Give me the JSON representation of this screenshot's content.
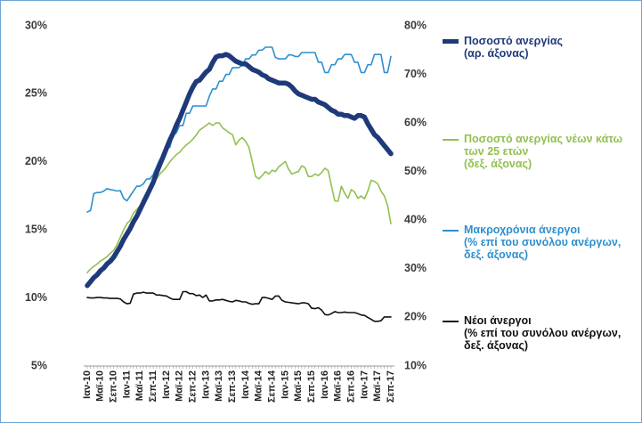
{
  "chart_data": {
    "type": "line",
    "categories": [
      "Ιαν-10",
      null,
      null,
      null,
      "Μαϊ-10",
      null,
      null,
      null,
      "Σεπ-10",
      null,
      null,
      null,
      "Ιαν-11",
      null,
      null,
      null,
      "Μαϊ-11",
      null,
      null,
      null,
      "Σεπ-11",
      null,
      null,
      null,
      "Ιαν-12",
      null,
      null,
      null,
      "Μαϊ-12",
      null,
      null,
      null,
      "Σεπ-12",
      null,
      null,
      null,
      "Ιαν-13",
      null,
      null,
      null,
      "Μαϊ-13",
      null,
      null,
      null,
      "Σεπ-13",
      null,
      null,
      null,
      "Ιαν-14",
      null,
      null,
      null,
      "Μαϊ-14",
      null,
      null,
      null,
      "Σεπ-14",
      null,
      null,
      null,
      "Ιαν-15",
      null,
      null,
      null,
      "Μαϊ-15",
      null,
      null,
      null,
      "Σεπ-15",
      null,
      null,
      null,
      "Ιαν-16",
      null,
      null,
      null,
      "Μαϊ-16",
      null,
      null,
      null,
      "Σεπ-16",
      null,
      null,
      null,
      "Ιαν-17",
      null,
      null,
      null,
      "Μαϊ-17",
      null,
      null,
      null,
      "Σεπ-17"
    ],
    "series": [
      {
        "name": "Ποσοστό ανεργίας\n(αρ. άξονας)",
        "color": "#1f3a7a",
        "values": [
          10.9,
          11.2,
          11.5,
          11.7,
          12.0,
          12.2,
          12.5,
          12.7,
          13.0,
          13.4,
          13.8,
          14.3,
          14.7,
          15.1,
          15.6,
          16.0,
          16.5,
          17.0,
          17.5,
          18.0,
          18.5,
          19.2,
          19.8,
          20.4,
          21.0,
          21.6,
          22.1,
          22.7,
          23.2,
          23.8,
          24.4,
          25.0,
          25.5,
          25.9,
          26.0,
          26.3,
          26.6,
          26.8,
          27.3,
          27.7,
          27.8,
          27.8,
          27.9,
          27.8,
          27.6,
          27.4,
          27.3,
          27.2,
          27.2,
          27.0,
          26.8,
          26.7,
          26.6,
          26.4,
          26.3,
          26.1,
          26.0,
          25.9,
          25.8,
          25.8,
          25.8,
          25.7,
          25.5,
          25.2,
          25.0,
          24.9,
          24.8,
          24.7,
          24.6,
          24.6,
          24.4,
          24.3,
          24.2,
          24.0,
          23.8,
          23.7,
          23.5,
          23.5,
          23.4,
          23.4,
          23.3,
          23.2,
          23.4,
          23.4,
          23.3,
          22.8,
          22.4,
          22.0,
          21.8,
          21.5,
          21.2,
          20.9,
          20.6
        ]
      },
      {
        "name": "Ποσοστό ανεργίας νέων κάτω\nτων 25 ετών\n(δεξ. άξονας)",
        "color": "#92c050",
        "axis": "y2",
        "values": [
          29.2,
          30.0,
          30.5,
          31.0,
          31.6,
          32.0,
          32.5,
          33.2,
          33.8,
          35.0,
          36.5,
          38.0,
          39.3,
          40.0,
          41.5,
          42.2,
          43.0,
          44.5,
          45.5,
          46.5,
          47.5,
          48.5,
          49.5,
          50.2,
          51.0,
          52.0,
          52.8,
          53.5,
          54.0,
          54.8,
          55.5,
          56.0,
          56.7,
          57.5,
          58.5,
          59.0,
          59.5,
          60.0,
          59.5,
          60.0,
          60.0,
          59.0,
          58.5,
          58.0,
          57.6,
          55.5,
          56.5,
          57.0,
          56.2,
          55.0,
          52.0,
          49.0,
          48.5,
          49.2,
          50.0,
          49.5,
          50.3,
          50.0,
          51.0,
          51.5,
          52.1,
          50.5,
          49.5,
          49.8,
          50.0,
          51.2,
          50.8,
          49.0,
          49.0,
          49.5,
          49.2,
          49.8,
          50.7,
          50.2,
          47.0,
          44.0,
          43.9,
          47.0,
          45.5,
          44.5,
          46.3,
          45.8,
          44.5,
          45.0,
          44.4,
          46.0,
          48.2,
          48.0,
          47.5,
          46.0,
          45.0,
          43.0,
          39.3
        ]
      },
      {
        "name": "Μακροχρόνια άνεργοι\n(% επί του συνόλου ανέργων,\nδεξ. άξονας)",
        "color": "#2e8fd0",
        "axis": "y2",
        "values": [
          41.7,
          42.0,
          45.5,
          45.7,
          45.7,
          46.0,
          46.5,
          46.3,
          46.2,
          46.0,
          46.1,
          44.5,
          44.0,
          45.0,
          46.0,
          47.0,
          47.0,
          47.5,
          48.5,
          48.5,
          49.4,
          51.0,
          52.5,
          53.0,
          54.9,
          55.0,
          57.5,
          58.0,
          59.5,
          59.5,
          62.0,
          62.0,
          63.5,
          63.5,
          63.5,
          63.5,
          63.5,
          65.5,
          67.0,
          67.0,
          68.6,
          68.6,
          70.0,
          70.0,
          71.4,
          71.4,
          71.4,
          72.0,
          73.2,
          73.2,
          74.0,
          74.0,
          75.0,
          75.0,
          75.6,
          75.6,
          75.6,
          73.5,
          73.2,
          73.2,
          73.2,
          74.0,
          74.0,
          73.7,
          73.7,
          74.5,
          74.5,
          74.5,
          74.5,
          74.5,
          72.5,
          72.5,
          70.4,
          70.4,
          72.0,
          72.0,
          73.2,
          73.2,
          74.1,
          74.1,
          74.1,
          72.5,
          72.5,
          70.4,
          70.4,
          72.0,
          72.0,
          74.1,
          74.1,
          74.1,
          70.4,
          70.4,
          73.7
        ]
      },
      {
        "name": "Νέοι άνεργοι\n(% επί του συνόλου ανέργων,\nδεξ. άξονας)",
        "color": "#111111",
        "axis": "y2",
        "values": [
          24.1,
          24.0,
          24.0,
          24.1,
          24.1,
          24.0,
          24.0,
          23.9,
          23.9,
          23.9,
          23.8,
          23.2,
          22.8,
          22.9,
          24.8,
          25.0,
          25.0,
          25.2,
          25.0,
          25.0,
          25.0,
          24.6,
          24.6,
          24.5,
          24.4,
          24.0,
          23.7,
          23.7,
          23.7,
          25.3,
          25.3,
          24.9,
          24.9,
          24.5,
          24.6,
          24.1,
          24.6,
          23.4,
          23.4,
          23.6,
          23.6,
          23.7,
          23.5,
          23.3,
          23.2,
          23.5,
          23.4,
          23.2,
          23.2,
          22.9,
          22.7,
          22.8,
          22.8,
          24.1,
          24.1,
          23.9,
          23.7,
          24.4,
          24.4,
          23.5,
          23.2,
          23.1,
          23.0,
          22.9,
          22.8,
          23.0,
          23.0,
          22.8,
          21.9,
          21.8,
          22.0,
          21.5,
          20.6,
          20.5,
          20.8,
          21.2,
          21.0,
          21.0,
          21.1,
          21.0,
          21.0,
          21.0,
          20.8,
          20.5,
          20.4,
          20.0,
          19.6,
          19.2,
          19.2,
          19.3,
          20.1,
          20.1,
          20.1
        ]
      }
    ],
    "ylim": [
      5,
      30
    ],
    "yticks": [
      {
        "value": 5,
        "label": "5%"
      },
      {
        "value": 10,
        "label": "10%"
      },
      {
        "value": 15,
        "label": "15%"
      },
      {
        "value": 20,
        "label": "20%"
      },
      {
        "value": 25,
        "label": "25%"
      },
      {
        "value": 30,
        "label": "30%"
      }
    ],
    "y2lim": [
      10,
      80
    ],
    "y2ticks": [
      {
        "value": 10,
        "label": "10%"
      },
      {
        "value": 20,
        "label": "20%"
      },
      {
        "value": 30,
        "label": "30%"
      },
      {
        "value": 40,
        "label": "40%"
      },
      {
        "value": 50,
        "label": "50%"
      },
      {
        "value": 60,
        "label": "60%"
      },
      {
        "value": 70,
        "label": "70%"
      },
      {
        "value": 80,
        "label": "80%"
      }
    ],
    "grid": false,
    "legend": "right"
  }
}
